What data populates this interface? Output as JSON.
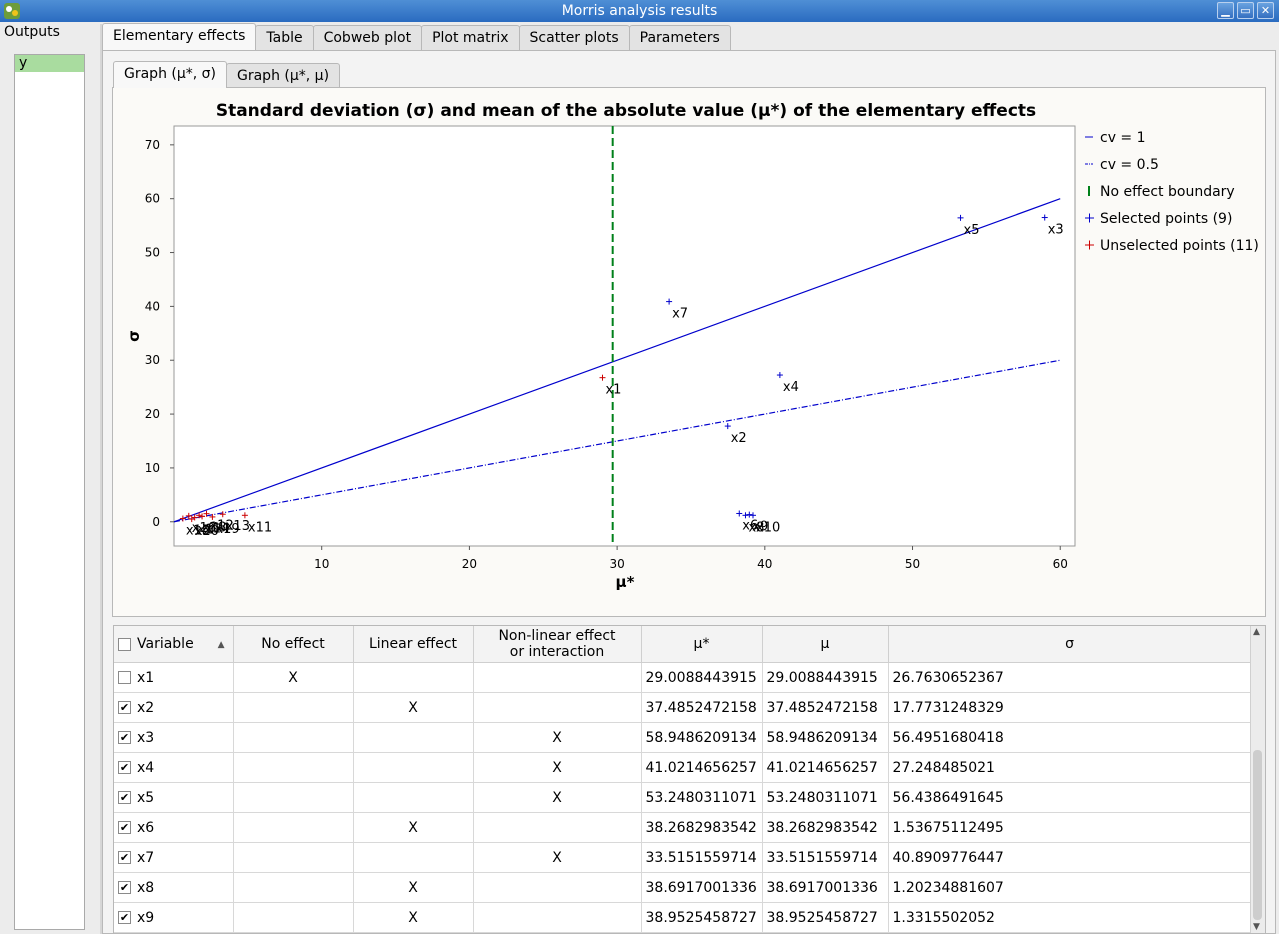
{
  "window": {
    "title": "Morris analysis results",
    "buttons": [
      "▁",
      "▭",
      "✕"
    ]
  },
  "outputs": {
    "label": "Outputs",
    "items": [
      "y"
    ]
  },
  "main_tabs": [
    "Elementary effects",
    "Table",
    "Cobweb plot",
    "Plot matrix",
    "Scatter plots",
    "Parameters"
  ],
  "sub_tabs": [
    "Graph (μ*, σ)",
    "Graph (μ*, μ)"
  ],
  "chart_data": {
    "type": "scatter",
    "title": "Standard deviation (σ) and mean of the absolute value (μ*) of the elementary effects",
    "xlabel": "μ*",
    "ylabel": "σ",
    "xlim": [
      0,
      61
    ],
    "ylim": [
      -4.5,
      73.5
    ],
    "xticks": [
      10,
      20,
      30,
      40,
      50,
      60
    ],
    "yticks": [
      0,
      10,
      20,
      30,
      40,
      50,
      60,
      70
    ],
    "lines": [
      {
        "name": "cv = 1",
        "color": "#0000cc",
        "style": "solid",
        "points": [
          [
            0,
            0
          ],
          [
            60,
            60
          ]
        ]
      },
      {
        "name": "cv = 0.5",
        "color": "#0000cc",
        "style": "dashdot",
        "points": [
          [
            0,
            0
          ],
          [
            60,
            30
          ]
        ]
      }
    ],
    "boundary": {
      "name": "No effect boundary",
      "x": 29.7,
      "color": "#00801a"
    },
    "legend": [
      {
        "label": "cv = 1",
        "symbol": "solid"
      },
      {
        "label": "cv = 0.5",
        "symbol": "dashdot"
      },
      {
        "label": "No effect boundary",
        "symbol": "vbar"
      },
      {
        "label": "Selected points (9)",
        "symbol": "plus-blue"
      },
      {
        "label": "Unselected points (11)",
        "symbol": "plus-red"
      }
    ],
    "legend_position": "right",
    "selected_points": [
      {
        "label": "x2",
        "x": 37.49,
        "y": 17.77
      },
      {
        "label": "x3",
        "x": 58.95,
        "y": 56.5
      },
      {
        "label": "x4",
        "x": 41.02,
        "y": 27.25
      },
      {
        "label": "x5",
        "x": 53.25,
        "y": 56.44
      },
      {
        "label": "x6",
        "x": 38.27,
        "y": 1.54
      },
      {
        "label": "x7",
        "x": 33.52,
        "y": 40.89
      },
      {
        "label": "x8",
        "x": 38.69,
        "y": 1.2
      },
      {
        "label": "x9",
        "x": 38.95,
        "y": 1.33
      },
      {
        "label": "x10",
        "x": 39.2,
        "y": 1.2
      }
    ],
    "unselected_points": [
      {
        "label": "x1",
        "x": 29.01,
        "y": 26.76
      },
      {
        "label": "x11",
        "x": 4.8,
        "y": 1.2
      },
      {
        "label": "x12",
        "x": 2.2,
        "y": 1.5
      },
      {
        "label": "x13",
        "x": 3.3,
        "y": 1.4
      },
      {
        "label": "x14",
        "x": 1.9,
        "y": 1.0
      },
      {
        "label": "x15",
        "x": 0.6,
        "y": 0.6
      },
      {
        "label": "x16",
        "x": 1.0,
        "y": 1.1
      },
      {
        "label": "x17",
        "x": 1.4,
        "y": 0.8
      },
      {
        "label": "x18",
        "x": 1.7,
        "y": 1.2
      },
      {
        "label": "x19",
        "x": 2.6,
        "y": 0.9
      },
      {
        "label": "x20",
        "x": 1.2,
        "y": 0.5
      }
    ]
  },
  "table": {
    "headers": [
      "Variable",
      "No effect",
      "Linear effect",
      "Non-linear effect\nor interaction",
      "μ*",
      "μ",
      "σ"
    ],
    "sort_indicator": "▲",
    "rows": [
      {
        "checked": false,
        "variable": "x1",
        "no_effect": "X",
        "linear": "",
        "nonlinear": "",
        "mu_star": "29.0088443915",
        "mu": "29.0088443915",
        "sigma": "26.7630652367"
      },
      {
        "checked": true,
        "variable": "x2",
        "no_effect": "",
        "linear": "X",
        "nonlinear": "",
        "mu_star": "37.4852472158",
        "mu": "37.4852472158",
        "sigma": "17.7731248329"
      },
      {
        "checked": true,
        "variable": "x3",
        "no_effect": "",
        "linear": "",
        "nonlinear": "X",
        "mu_star": "58.9486209134",
        "mu": "58.9486209134",
        "sigma": "56.4951680418"
      },
      {
        "checked": true,
        "variable": "x4",
        "no_effect": "",
        "linear": "",
        "nonlinear": "X",
        "mu_star": "41.0214656257",
        "mu": "41.0214656257",
        "sigma": "27.248485021"
      },
      {
        "checked": true,
        "variable": "x5",
        "no_effect": "",
        "linear": "",
        "nonlinear": "X",
        "mu_star": "53.2480311071",
        "mu": "53.2480311071",
        "sigma": "56.4386491645"
      },
      {
        "checked": true,
        "variable": "x6",
        "no_effect": "",
        "linear": "X",
        "nonlinear": "",
        "mu_star": "38.2682983542",
        "mu": "38.2682983542",
        "sigma": "1.53675112495"
      },
      {
        "checked": true,
        "variable": "x7",
        "no_effect": "",
        "linear": "",
        "nonlinear": "X",
        "mu_star": "33.5151559714",
        "mu": "33.5151559714",
        "sigma": "40.8909776447"
      },
      {
        "checked": true,
        "variable": "x8",
        "no_effect": "",
        "linear": "X",
        "nonlinear": "",
        "mu_star": "38.6917001336",
        "mu": "38.6917001336",
        "sigma": "1.20234881607"
      },
      {
        "checked": true,
        "variable": "x9",
        "no_effect": "",
        "linear": "X",
        "nonlinear": "",
        "mu_star": "38.9525458727",
        "mu": "38.9525458727",
        "sigma": "1.3315502052"
      }
    ]
  }
}
